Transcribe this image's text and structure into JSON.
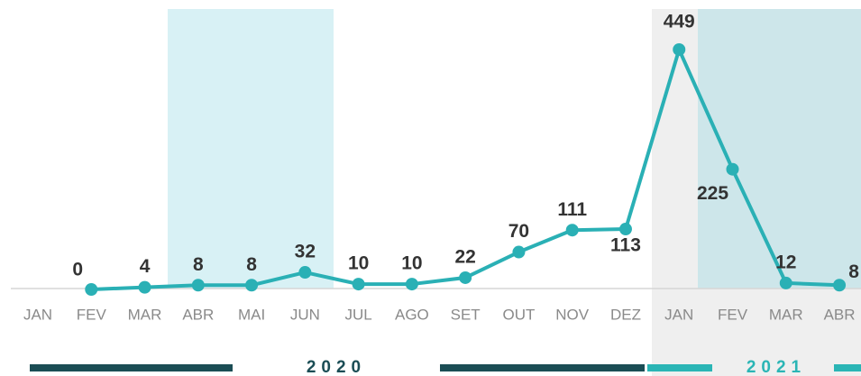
{
  "chart_data": {
    "type": "line",
    "categories": [
      "JAN",
      "FEV",
      "MAR",
      "ABR",
      "MAI",
      "JUN",
      "JUL",
      "AGO",
      "SET",
      "OUT",
      "NOV",
      "DEZ",
      "JAN",
      "FEV",
      "MAR",
      "ABR"
    ],
    "values": [
      null,
      0,
      4,
      8,
      8,
      32,
      10,
      10,
      22,
      70,
      111,
      113,
      449,
      225,
      12,
      8
    ],
    "color": "#2ab0b5",
    "ylim": [
      0,
      480
    ],
    "years": [
      "2020",
      "2021"
    ]
  }
}
